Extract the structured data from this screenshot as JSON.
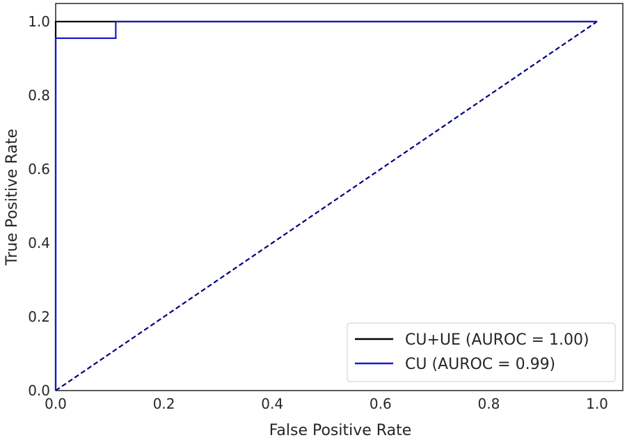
{
  "chart_data": {
    "type": "line",
    "title": "",
    "xlabel": "False Positive Rate",
    "ylabel": "True Positive Rate",
    "xlim": [
      0.0,
      1.0
    ],
    "ylim": [
      0.0,
      1.0
    ],
    "grid": false,
    "legend_position": "lower-right",
    "x_ticks": [
      "0.0",
      "0.2",
      "0.4",
      "0.6",
      "0.8",
      "1.0"
    ],
    "y_ticks": [
      "0.0",
      "0.2",
      "0.4",
      "0.6",
      "0.8",
      "1.0"
    ],
    "x_tick_values": [
      0.0,
      0.2,
      0.4,
      0.6,
      0.8,
      1.0
    ],
    "y_tick_values": [
      0.0,
      0.2,
      0.4,
      0.6,
      0.8,
      1.0
    ],
    "series": [
      {
        "name": "CU+UE (AUROC = 1.00)",
        "color": "#000000",
        "style": "solid",
        "x": [
          0.0,
          0.0,
          1.0
        ],
        "y": [
          0.0,
          1.0,
          1.0
        ]
      },
      {
        "name": "CU (AUROC = 0.99)",
        "color": "#1a1acc",
        "style": "solid",
        "x": [
          0.0,
          0.0,
          0.111,
          0.111,
          1.0
        ],
        "y": [
          0.0,
          0.955,
          0.955,
          1.0,
          1.0
        ]
      },
      {
        "name": "",
        "color": "#000080",
        "style": "dashed",
        "x": [
          0.0,
          1.0
        ],
        "y": [
          0.0,
          1.0
        ]
      }
    ]
  }
}
